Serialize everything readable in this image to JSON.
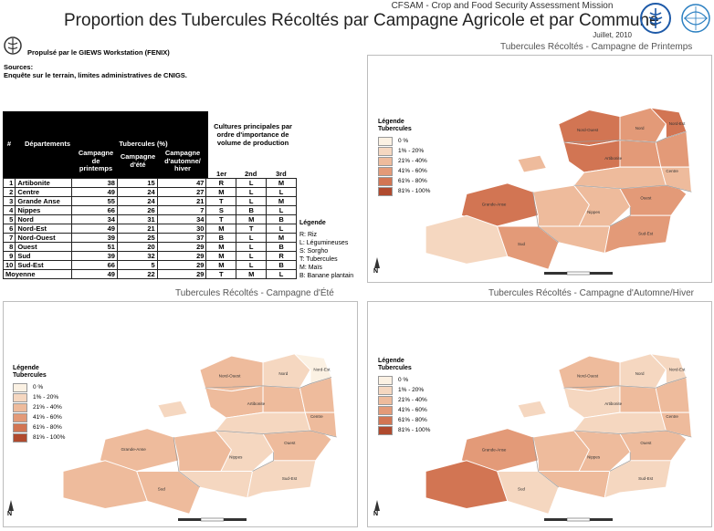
{
  "header": {
    "mission": "CFSAM - Crop and Food Security Assessment Mission",
    "title": "Proportion des Tubercules Récoltés par Campagne Agricole et par Commune",
    "date": "Juillet, 2010"
  },
  "powered_by": "Propulsé par le GIEWS Workstation (FENIX)",
  "sources": {
    "label": "Sources:",
    "text": "Enquête sur le terrain, limites administratives de CNIGS."
  },
  "colors": {
    "classes": [
      "#fbf1e3",
      "#f5d7c0",
      "#eebb9c",
      "#e39a78",
      "#d27553",
      "#b04a2e"
    ],
    "table_header_bg": "#000000",
    "fao_blue": "#1e5aa8",
    "wfp_blue": "#2a7fc1"
  },
  "maps": {
    "spring": {
      "title": "Tubercules Récoltés - Campagne de Printemps"
    },
    "summer": {
      "title": "Tubercules Récoltés - Campagne d'Été"
    },
    "autumn": {
      "title": "Tubercules Récoltés - Campagne d'Automne/Hiver"
    }
  },
  "map_legend": {
    "title_line1": "Légende",
    "title_line2": "Tubercules",
    "classes": [
      "0 %",
      "1% - 20%",
      "21% - 40%",
      "41% - 60%",
      "61% - 80%",
      "81% - 100%"
    ]
  },
  "north_label": "N",
  "table": {
    "headers": {
      "num": "#",
      "dept": "Départements",
      "tubercules": "Tubercules (%)",
      "spring": [
        "Campagne",
        "de",
        "printemps"
      ],
      "summer": [
        "Campagne",
        "d'été"
      ],
      "autumn": [
        "Campagne",
        "d'automne/",
        "hiver"
      ],
      "cultures": [
        "Cultures principales par",
        "ordre d'importance de",
        "volume de production"
      ],
      "first": "1er",
      "second": "2nd",
      "third": "3rd"
    },
    "rows": [
      {
        "n": "1",
        "dept": "Artibonite",
        "spring": "38",
        "summer": "15",
        "autumn": "47",
        "c1": "R",
        "c2": "L",
        "c3": "M"
      },
      {
        "n": "2",
        "dept": "Centre",
        "spring": "49",
        "summer": "24",
        "autumn": "27",
        "c1": "M",
        "c2": "L",
        "c3": "L"
      },
      {
        "n": "3",
        "dept": "Grande Anse",
        "spring": "55",
        "summer": "24",
        "autumn": "21",
        "c1": "T",
        "c2": "L",
        "c3": "M"
      },
      {
        "n": "4",
        "dept": "Nippes",
        "spring": "66",
        "summer": "26",
        "autumn": "7",
        "c1": "S",
        "c2": "B",
        "c3": "L"
      },
      {
        "n": "5",
        "dept": "Nord",
        "spring": "34",
        "summer": "31",
        "autumn": "34",
        "c1": "T",
        "c2": "M",
        "c3": "B"
      },
      {
        "n": "6",
        "dept": "Nord-Est",
        "spring": "49",
        "summer": "21",
        "autumn": "30",
        "c1": "M",
        "c2": "T",
        "c3": "L"
      },
      {
        "n": "7",
        "dept": "Nord-Ouest",
        "spring": "39",
        "summer": "25",
        "autumn": "37",
        "c1": "B",
        "c2": "L",
        "c3": "M"
      },
      {
        "n": "8",
        "dept": "Ouest",
        "spring": "51",
        "summer": "20",
        "autumn": "29",
        "c1": "M",
        "c2": "L",
        "c3": "B"
      },
      {
        "n": "9",
        "dept": "Sud",
        "spring": "39",
        "summer": "32",
        "autumn": "29",
        "c1": "M",
        "c2": "L",
        "c3": "R"
      },
      {
        "n": "10",
        "dept": "Sud-Est",
        "spring": "66",
        "summer": "5",
        "autumn": "29",
        "c1": "M",
        "c2": "L",
        "c3": "B"
      }
    ],
    "average": {
      "label": "Moyenne",
      "spring": "49",
      "summer": "22",
      "autumn": "29",
      "c1": "T",
      "c2": "M",
      "c3": "L"
    }
  },
  "crop_legend": {
    "title": "Légende",
    "items": [
      "R: Riz",
      "L: Légumineuses",
      "S: Sorgho",
      "T: Tubercules",
      "M: Maïs",
      "B: Banane plantain"
    ]
  },
  "map_labels": {
    "nord_ouest": "Nord-Ouest",
    "nord": "Nord",
    "nord_est": "Nord-Est",
    "artibonite": "Artibonite",
    "centre": "Centre",
    "ouest": "Ouest",
    "grande_anse": "Grande-Anse",
    "nippes": "Nippes",
    "sud": "Sud",
    "sud_est": "Sud-Est"
  },
  "map_values": {
    "spring": [
      4,
      2,
      2,
      3,
      1,
      3,
      2,
      3,
      4,
      3,
      4,
      4,
      3,
      3,
      2,
      2,
      2
    ],
    "summer": [
      2,
      2,
      1,
      2,
      2,
      2,
      1,
      1,
      2,
      1,
      0,
      2,
      2,
      2,
      1,
      2,
      1
    ],
    "autumn": [
      3,
      2,
      2,
      2,
      4,
      1,
      2,
      1,
      2,
      1,
      1,
      1,
      2,
      2,
      1,
      2,
      1
    ]
  }
}
